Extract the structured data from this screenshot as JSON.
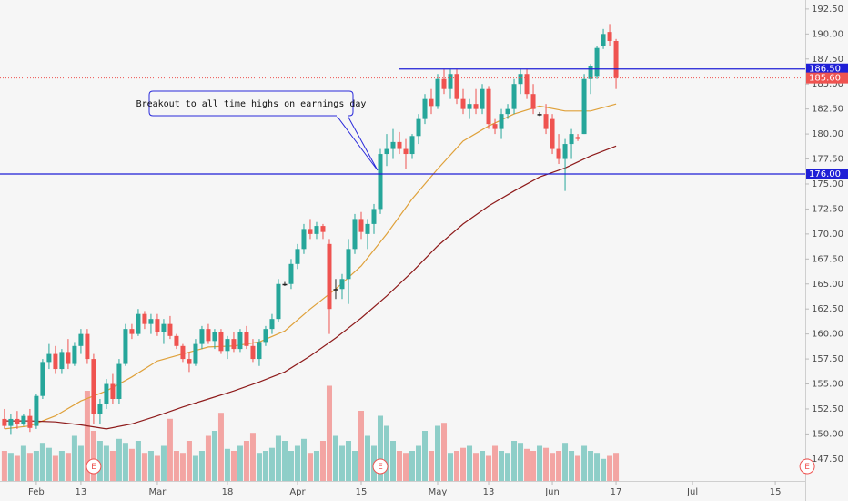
{
  "chart_data": {
    "type": "candlestick",
    "up_color": "#26a69a",
    "down_color": "#ef5350",
    "flat_color": "#222222",
    "candles": [
      [
        151.5,
        152.5,
        150.5,
        150.8
      ],
      [
        150.8,
        152,
        150,
        151.5
      ],
      [
        151.5,
        152.3,
        150.5,
        151
      ],
      [
        151,
        152,
        150.8,
        151.8
      ],
      [
        151.8,
        152.5,
        150.2,
        150.6
      ],
      [
        150.8,
        154,
        150.5,
        153.8
      ],
      [
        153.8,
        157.5,
        153.5,
        157.2
      ],
      [
        157.2,
        159,
        156.5,
        158
      ],
      [
        158,
        158.8,
        156,
        156.5
      ],
      [
        156.5,
        158.5,
        156,
        158.2
      ],
      [
        158.2,
        159.5,
        156.5,
        157
      ],
      [
        157,
        159.2,
        156.8,
        158.8
      ],
      [
        158.8,
        160.5,
        158,
        160
      ],
      [
        160,
        160.5,
        157,
        157.5
      ],
      [
        157.5,
        158,
        151,
        152
      ],
      [
        152,
        153.5,
        151,
        153
      ],
      [
        153,
        155.5,
        152.5,
        155
      ],
      [
        155,
        156,
        153,
        153.5
      ],
      [
        153.5,
        157.5,
        153,
        157
      ],
      [
        157,
        161,
        156.8,
        160.5
      ],
      [
        160.5,
        161,
        159.5,
        160
      ],
      [
        160,
        162.5,
        159.8,
        162
      ],
      [
        162,
        162.3,
        160.5,
        161
      ],
      [
        161,
        162,
        160,
        161.5
      ],
      [
        161.5,
        162,
        159.8,
        160.2
      ],
      [
        160.2,
        161.5,
        159,
        161
      ],
      [
        161,
        161.8,
        159.5,
        159.8
      ],
      [
        159.8,
        160,
        158.5,
        158.8
      ],
      [
        158.8,
        159,
        157.2,
        157.5
      ],
      [
        157.5,
        158.2,
        156.2,
        157
      ],
      [
        157,
        159.5,
        156.8,
        159
      ],
      [
        159,
        160.8,
        158.5,
        160.5
      ],
      [
        160.5,
        161,
        159,
        159.3
      ],
      [
        159.3,
        160.5,
        158.5,
        160.2
      ],
      [
        160.2,
        160.5,
        158,
        158.3
      ],
      [
        158.3,
        159.8,
        157.5,
        159.5
      ],
      [
        159.5,
        160.2,
        158.2,
        158.5
      ],
      [
        158.5,
        160.5,
        158.2,
        160.2
      ],
      [
        160.2,
        160.8,
        158.5,
        158.8
      ],
      [
        158.8,
        159.5,
        157.2,
        157.5
      ],
      [
        157.5,
        159.5,
        156.8,
        159.2
      ],
      [
        159.2,
        160.8,
        158.8,
        160.5
      ],
      [
        160.5,
        162,
        160,
        161.5
      ],
      [
        161.5,
        165.5,
        161.2,
        165
      ],
      [
        165,
        165.2,
        164.8,
        165
      ],
      [
        165,
        167.5,
        164.5,
        167
      ],
      [
        167,
        169,
        166.5,
        168.5
      ],
      [
        168.5,
        171,
        168,
        170.5
      ],
      [
        170.5,
        171.5,
        169.5,
        170
      ],
      [
        170,
        171.2,
        169.5,
        170.8
      ],
      [
        170.8,
        171,
        169.5,
        170.2
      ],
      [
        169,
        169.5,
        160,
        162.5
      ],
      [
        164.5,
        165.5,
        163.5,
        164.5
      ],
      [
        164.5,
        166,
        163.5,
        165.5
      ],
      [
        165.5,
        169.5,
        163,
        168.5
      ],
      [
        168.5,
        172,
        168,
        171.5
      ],
      [
        171.5,
        172.2,
        169.5,
        170.2
      ],
      [
        170,
        171.5,
        168.5,
        171
      ],
      [
        171,
        173,
        170,
        172.5
      ],
      [
        172.5,
        178.5,
        172,
        178
      ],
      [
        178,
        180,
        176.8,
        178.5
      ],
      [
        178.5,
        180.5,
        177.5,
        179.2
      ],
      [
        179.2,
        180.2,
        178,
        178.5
      ],
      [
        178.5,
        179.5,
        176.5,
        178
      ],
      [
        178,
        180,
        177.5,
        179.8
      ],
      [
        179.8,
        182,
        179,
        181.5
      ],
      [
        181.5,
        184,
        181,
        183.5
      ],
      [
        183.5,
        184.5,
        182,
        182.8
      ],
      [
        182.8,
        186,
        182.5,
        185.5
      ],
      [
        185.5,
        186.5,
        184,
        184.5
      ],
      [
        184.5,
        186.5,
        183.5,
        186
      ],
      [
        186,
        186.5,
        183,
        183.5
      ],
      [
        183.5,
        184.5,
        182,
        182.5
      ],
      [
        182.5,
        183.5,
        181.5,
        183
      ],
      [
        183,
        184.5,
        182,
        182.5
      ],
      [
        182.5,
        185,
        182,
        184.5
      ],
      [
        184.5,
        184.8,
        180.5,
        181
      ],
      [
        181,
        181.5,
        180,
        180.5
      ],
      [
        180.5,
        182.5,
        179.5,
        182
      ],
      [
        182,
        183,
        181.5,
        182.5
      ],
      [
        182.5,
        185.5,
        182,
        185
      ],
      [
        185,
        186.5,
        184,
        186
      ],
      [
        186,
        186.5,
        183.5,
        184
      ],
      [
        184,
        185,
        182,
        182.5
      ],
      [
        182,
        182.2,
        181.8,
        182
      ],
      [
        182,
        183,
        180,
        180.5
      ],
      [
        181.5,
        182,
        178,
        178.5
      ],
      [
        178.5,
        180,
        177,
        177.5
      ],
      [
        177.5,
        179.5,
        174.3,
        179
      ],
      [
        179,
        180.5,
        177.5,
        180
      ],
      [
        179.7,
        180,
        179.3,
        179.5
      ],
      [
        180,
        186,
        180,
        185.5
      ],
      [
        185.5,
        187,
        184,
        186.8
      ],
      [
        185.8,
        188.8,
        185.5,
        188.6
      ],
      [
        188.8,
        190.5,
        188.5,
        190
      ],
      [
        190.2,
        191,
        188.8,
        189.3
      ],
      [
        189.3,
        189.5,
        184.5,
        185.6
      ]
    ],
    "volumes": [
      30,
      28,
      25,
      35,
      28,
      30,
      38,
      33,
      25,
      30,
      28,
      45,
      35,
      90,
      50,
      40,
      35,
      30,
      42,
      38,
      32,
      40,
      28,
      30,
      25,
      35,
      62,
      30,
      28,
      40,
      25,
      30,
      45,
      50,
      68,
      32,
      30,
      35,
      40,
      48,
      28,
      30,
      33,
      45,
      40,
      30,
      35,
      42,
      28,
      30,
      40,
      95,
      45,
      35,
      40,
      30,
      70,
      45,
      35,
      65,
      55,
      40,
      30,
      28,
      30,
      35,
      50,
      30,
      55,
      58,
      28,
      30,
      33,
      35,
      28,
      30,
      25,
      35,
      30,
      28,
      40,
      38,
      32,
      30,
      35,
      33,
      28,
      30,
      38,
      30,
      25,
      35,
      30,
      28,
      22,
      25,
      28
    ],
    "volume_lim": [
      0,
      100
    ],
    "moving_averages": [
      {
        "color": "#dfa13a",
        "x": [
          0,
          4,
          8,
          12,
          16,
          20,
          24,
          28,
          32,
          36,
          40,
          44,
          48,
          52,
          56,
          60,
          64,
          68,
          72,
          76,
          80,
          84,
          88,
          92,
          96
        ],
        "values": [
          150.5,
          150.8,
          151.8,
          153.3,
          154.3,
          155.7,
          157.3,
          158,
          158.7,
          158.8,
          159.2,
          160.3,
          162.5,
          164.5,
          166.8,
          170,
          173.5,
          176.5,
          179.3,
          180.8,
          182,
          182.8,
          182.3,
          182.3,
          183
        ]
      },
      {
        "color": "#8e1b1b",
        "x": [
          0,
          4,
          8,
          12,
          16,
          20,
          24,
          28,
          32,
          36,
          40,
          44,
          48,
          52,
          56,
          60,
          64,
          68,
          72,
          76,
          80,
          84,
          88,
          92,
          96
        ],
        "values": [
          151.3,
          151.3,
          151.2,
          150.9,
          150.5,
          151,
          151.8,
          152.7,
          153.5,
          154.3,
          155.2,
          156.2,
          157.8,
          159.6,
          161.6,
          163.8,
          166.2,
          168.8,
          171,
          172.8,
          174.3,
          175.7,
          176.6,
          177.8,
          178.8
        ]
      }
    ],
    "xlim": [
      -0.7,
      125.7
    ],
    "xticks": [
      {
        "value": 5,
        "label": "Feb"
      },
      {
        "value": 12,
        "label": "13"
      },
      {
        "value": 24,
        "label": "Mar"
      },
      {
        "value": 35,
        "label": "18"
      },
      {
        "value": 46,
        "label": "Apr"
      },
      {
        "value": 56,
        "label": "15"
      },
      {
        "value": 68,
        "label": "May"
      },
      {
        "value": 76,
        "label": "13"
      },
      {
        "value": 86,
        "label": "Jun"
      },
      {
        "value": 96,
        "label": "17"
      },
      {
        "value": 108,
        "label": "Jul"
      },
      {
        "value": 121,
        "label": "15"
      }
    ],
    "ylim": [
      145.3,
      193.4
    ],
    "yticks": [
      {
        "value": 147.5,
        "label": "147.50"
      },
      {
        "value": 150,
        "label": "150.00"
      },
      {
        "value": 152.5,
        "label": "152.50"
      },
      {
        "value": 155,
        "label": "155.00"
      },
      {
        "value": 157.5,
        "label": "157.50"
      },
      {
        "value": 160,
        "label": "160.00"
      },
      {
        "value": 162.5,
        "label": "162.50"
      },
      {
        "value": 165,
        "label": "165.00"
      },
      {
        "value": 167.5,
        "label": "167.50"
      },
      {
        "value": 170,
        "label": "170.00"
      },
      {
        "value": 172.5,
        "label": "172.50"
      },
      {
        "value": 175,
        "label": "175.00"
      },
      {
        "value": 177.5,
        "label": "177.50"
      },
      {
        "value": 180,
        "label": "180.00"
      },
      {
        "value": 182.5,
        "label": "182.50"
      },
      {
        "value": 185,
        "label": "185.00"
      },
      {
        "value": 187.5,
        "label": "187.50"
      },
      {
        "value": 190,
        "label": "190.00"
      },
      {
        "value": 192.5,
        "label": "192.50"
      }
    ],
    "levels": [
      {
        "value": 186.5,
        "label": "186.50",
        "color": "#1f1fd6",
        "from": 62
      },
      {
        "value": 176,
        "label": "176.00",
        "color": "#1f1fd6",
        "from": -0.7
      }
    ],
    "last_price": {
      "value": 185.6,
      "label": "185.60",
      "color": "#ef5350"
    },
    "earnings": {
      "label": "E",
      "x": [
        14,
        59,
        126
      ]
    },
    "annotation": "Breakout to all time highs on earnings day"
  }
}
